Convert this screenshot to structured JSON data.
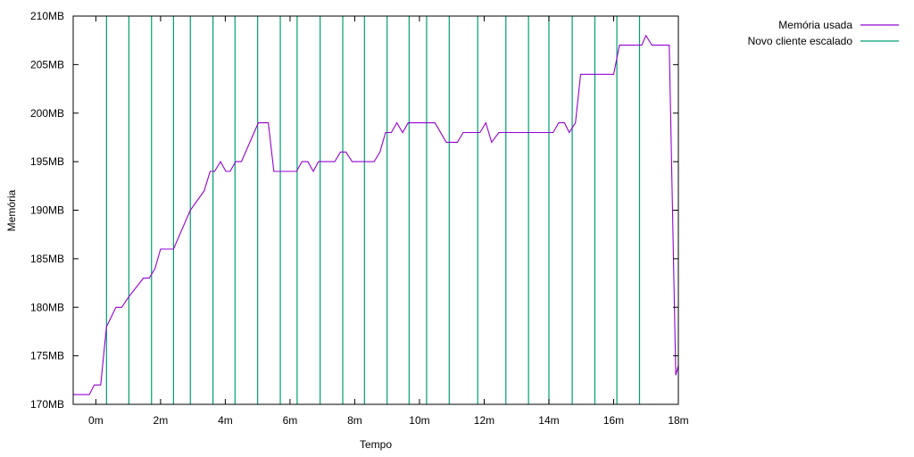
{
  "chart_data": {
    "type": "line",
    "title": "",
    "xlabel": "Tempo",
    "ylabel": "Memória",
    "xlim": [
      -0.7,
      18.0
    ],
    "ylim": [
      170,
      210
    ],
    "x_ticks": [
      {
        "value": 0,
        "label": "0m"
      },
      {
        "value": 2,
        "label": "2m"
      },
      {
        "value": 4,
        "label": "4m"
      },
      {
        "value": 6,
        "label": "6m"
      },
      {
        "value": 8,
        "label": "8m"
      },
      {
        "value": 10,
        "label": "10m"
      },
      {
        "value": 12,
        "label": "12m"
      },
      {
        "value": 14,
        "label": "14m"
      },
      {
        "value": 16,
        "label": "16m"
      },
      {
        "value": 18,
        "label": "18m"
      }
    ],
    "y_ticks": [
      {
        "value": 170,
        "label": "170MB"
      },
      {
        "value": 175,
        "label": "175MB"
      },
      {
        "value": 180,
        "label": "180MB"
      },
      {
        "value": 185,
        "label": "185MB"
      },
      {
        "value": 190,
        "label": "190MB"
      },
      {
        "value": 195,
        "label": "195MB"
      },
      {
        "value": 200,
        "label": "200MB"
      },
      {
        "value": 205,
        "label": "205MB"
      },
      {
        "value": 210,
        "label": "210MB"
      }
    ],
    "legend_position": "top-right, outside plot",
    "series": [
      {
        "name": "Memória usada",
        "color": "#9400d3",
        "x": [
          -0.7,
          -0.2,
          -0.05,
          0.15,
          0.33,
          0.62,
          0.8,
          1.0,
          1.47,
          1.65,
          1.83,
          2.0,
          2.17,
          2.4,
          2.92,
          3.35,
          3.53,
          3.67,
          3.85,
          4.02,
          4.15,
          4.32,
          4.5,
          5.02,
          5.33,
          5.5,
          5.68,
          5.85,
          6.2,
          6.37,
          6.55,
          6.72,
          6.88,
          7.38,
          7.56,
          7.73,
          7.92,
          8.1,
          8.6,
          8.78,
          8.95,
          9.13,
          9.3,
          9.48,
          9.65,
          10.48,
          10.83,
          11.0,
          11.17,
          11.35,
          11.87,
          12.05,
          12.23,
          12.45,
          13.6,
          14.13,
          14.3,
          14.48,
          14.63,
          14.82,
          14.98,
          16.0,
          16.18,
          16.35,
          16.87,
          17.0,
          17.18,
          17.37,
          17.72,
          17.92,
          18.0
        ],
        "y": [
          171,
          171,
          172,
          172,
          178,
          180,
          180,
          181,
          183,
          183,
          184,
          186,
          186,
          186,
          190,
          192,
          194,
          194,
          195,
          194,
          194,
          195,
          195,
          199,
          199,
          194,
          194,
          194,
          194,
          195,
          195,
          194,
          195,
          195,
          196,
          196,
          195,
          195,
          195,
          196,
          198,
          198,
          199,
          198,
          199,
          199,
          197,
          197,
          197,
          198,
          198,
          199,
          197,
          198,
          198,
          198,
          199,
          199,
          198,
          199,
          204,
          204,
          207,
          207,
          207,
          208,
          207,
          207,
          207,
          173,
          174
        ]
      },
      {
        "name": "Novo cliente escalado",
        "color": "#009e73",
        "type": "vertical-lines",
        "x": [
          0.33,
          1.02,
          1.72,
          2.4,
          2.92,
          3.62,
          4.3,
          5.0,
          5.7,
          6.22,
          6.93,
          7.63,
          8.3,
          9.0,
          9.68,
          10.22,
          10.92,
          11.8,
          12.67,
          13.37,
          14.0,
          14.72,
          15.42,
          16.1,
          16.8
        ]
      }
    ]
  }
}
